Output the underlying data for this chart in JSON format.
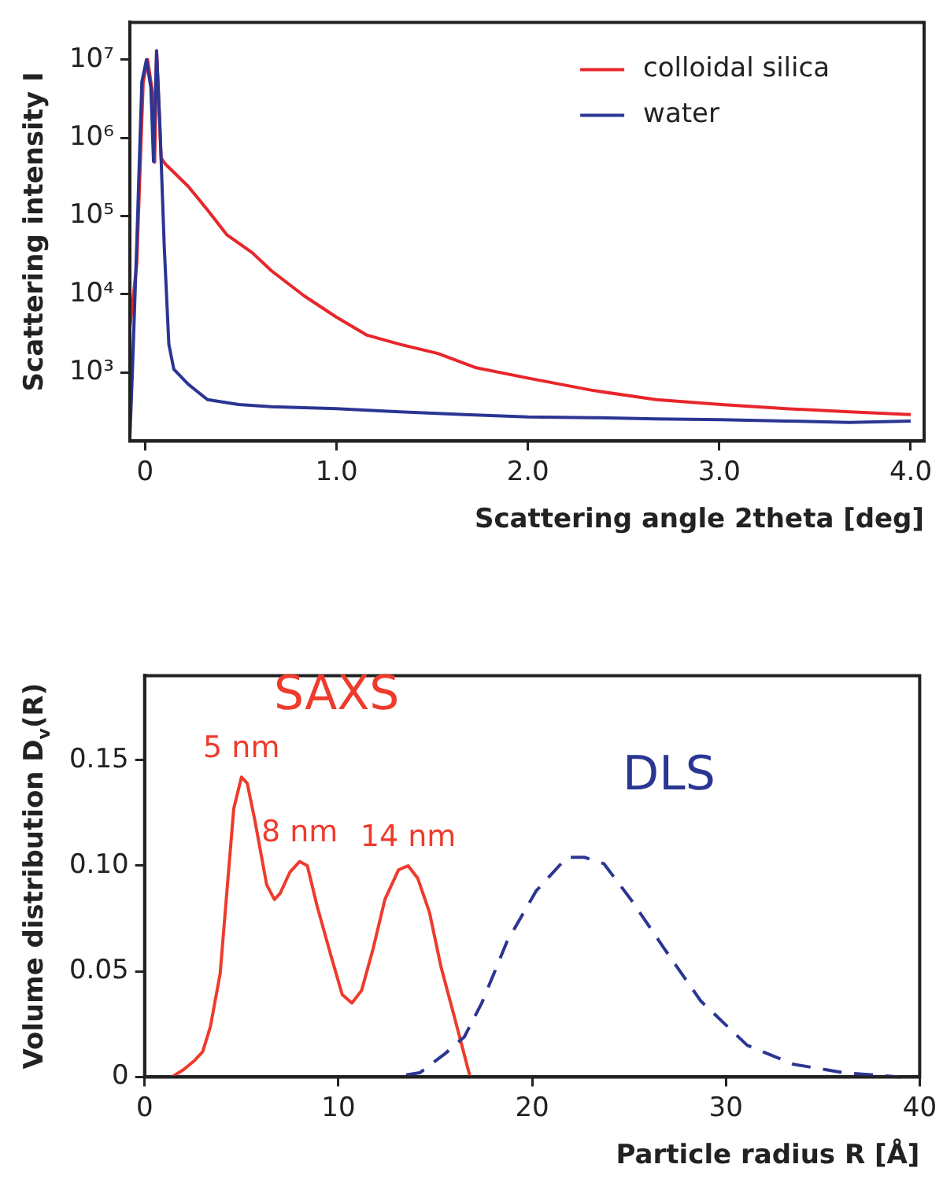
{
  "chart_data": [
    {
      "type": "line",
      "xlabel": "Scattering angle 2theta [deg]",
      "ylabel": "Scattering intensity I",
      "log": "y",
      "legend": "top right",
      "marker": "none",
      "grid": false,
      "xlim": [
        -0.08,
        4.07
      ],
      "xticks": [
        {
          "value": 0,
          "label": "0"
        },
        {
          "value": 1,
          "label": "1.0"
        },
        {
          "value": 2,
          "label": "2.0"
        },
        {
          "value": 3,
          "label": "3.0"
        },
        {
          "value": 4,
          "label": "4.0"
        }
      ],
      "ylim": [
        133,
        30000000
      ],
      "yticks": [
        {
          "value": 1000,
          "label": "10³"
        },
        {
          "value": 10000,
          "label": "10⁴"
        },
        {
          "value": 100000,
          "label": "10⁵"
        },
        {
          "value": 1000000,
          "label": "10⁶"
        },
        {
          "value": 10000000,
          "label": "10⁷"
        }
      ],
      "series": [
        {
          "name": "colloidal silica",
          "color": "#e8262b",
          "x": [
            -0.08,
            -0.044,
            -0.01,
            0.013,
            0.04,
            0.05,
            0.06,
            0.084,
            0.107,
            0.225,
            0.326,
            0.426,
            0.56,
            0.66,
            0.83,
            1.0,
            1.16,
            1.33,
            1.53,
            1.73,
            2.0,
            2.34,
            2.67,
            3.01,
            3.35,
            3.68,
            4.0
          ],
          "values": [
            3600,
            24000,
            5200000,
            10000000,
            3600000,
            490000,
            13000000,
            550000,
            460000,
            240000,
            120000,
            58000,
            34000,
            20000,
            9600,
            5100,
            3000,
            2300,
            1750,
            1150,
            850,
            590,
            450,
            390,
            345,
            315,
            290
          ]
        },
        {
          "name": "water",
          "color": "#2b3592",
          "x": [
            -0.08,
            -0.067,
            -0.044,
            -0.017,
            0.007,
            0.03,
            0.044,
            0.06,
            0.077,
            0.1,
            0.124,
            0.15,
            0.225,
            0.326,
            0.49,
            0.66,
            1.0,
            1.33,
            1.67,
            2.0,
            2.34,
            2.67,
            3.01,
            3.35,
            3.68,
            4.0
          ],
          "values": [
            140,
            930,
            41000,
            5200000,
            10000000,
            4400000,
            500000,
            13000000,
            1500000,
            41000,
            2300,
            1100,
            710,
            450,
            390,
            365,
            345,
            315,
            290,
            270,
            265,
            255,
            250,
            240,
            230,
            240
          ]
        }
      ]
    },
    {
      "type": "line",
      "xlabel": "Particle radius R [Å]",
      "ylabel": "Volume distribution D$_{v}$(R)",
      "legend": false,
      "marker": "none",
      "grid": false,
      "xlim": [
        0,
        40
      ],
      "xticks": [
        0,
        10,
        20,
        30,
        40
      ],
      "ylim": [
        0,
        0.19
      ],
      "yticks": [
        {
          "value": 0,
          "label": "0"
        },
        {
          "value": 0.05,
          "label": "0.05"
        },
        {
          "value": 0.1,
          "label": "0.10"
        },
        {
          "value": 0.15,
          "label": "0.15"
        }
      ],
      "annotations": [
        {
          "text": "5 nm",
          "x": 5,
          "y": 0.142
        },
        {
          "text": "8 nm",
          "x": 8,
          "y": 0.102
        },
        {
          "text": "14 nm",
          "x": 13.6,
          "y": 0.1
        }
      ],
      "series": [
        {
          "name": "SAXS",
          "color": "#ef3b2c",
          "line_style": "solid",
          "x": [
            1.4,
            2.0,
            2.6,
            3.0,
            3.4,
            3.9,
            4.6,
            5.0,
            5.3,
            5.7,
            6.3,
            6.7,
            7.0,
            7.5,
            8.0,
            8.4,
            8.9,
            9.6,
            10.2,
            10.7,
            11.2,
            11.8,
            12.4,
            13.1,
            13.6,
            14.1,
            14.7,
            15.3,
            16.0,
            16.8
          ],
          "values": [
            0,
            0.0034,
            0.008,
            0.012,
            0.024,
            0.049,
            0.127,
            0.142,
            0.139,
            0.121,
            0.091,
            0.084,
            0.087,
            0.097,
            0.102,
            0.1,
            0.081,
            0.058,
            0.039,
            0.035,
            0.041,
            0.061,
            0.084,
            0.098,
            0.1,
            0.094,
            0.078,
            0.052,
            0.028,
            0
          ]
        },
        {
          "name": "DLS",
          "color": "#2b3592",
          "line_style": "dashed",
          "x": [
            13.5,
            14.2,
            15.5,
            16.5,
            17.4,
            18.7,
            20.2,
            21.8,
            22.7,
            23.7,
            25.1,
            26.8,
            28.7,
            31.1,
            33.5,
            36.1,
            39.0
          ],
          "values": [
            0.001,
            0.002,
            0.011,
            0.019,
            0.035,
            0.064,
            0.088,
            0.104,
            0.104,
            0.101,
            0.084,
            0.061,
            0.036,
            0.015,
            0.006,
            0.002,
            0
          ]
        }
      ]
    }
  ]
}
